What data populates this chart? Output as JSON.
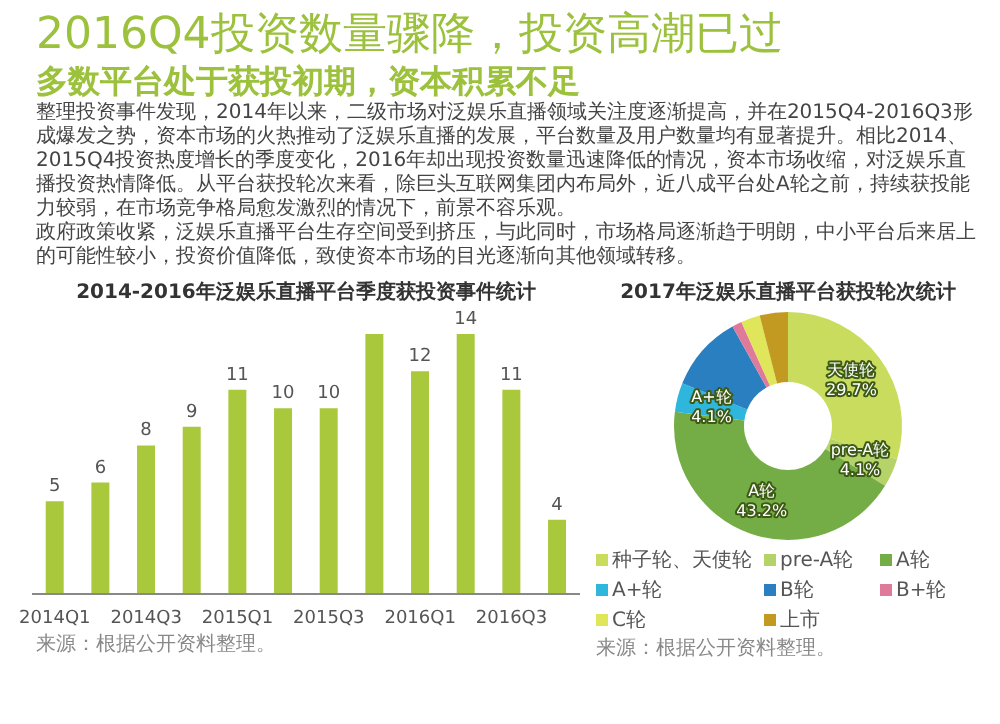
{
  "chart_data": [
    {
      "type": "other",
      "title": "2016Q4投资数量骤降，投资高潮已过",
      "subtitle": "多数平台处于获投初期，资本积累不足",
      "annotations": [
        "整理投资事件发现，2014年以来，二级市场对泛娱乐直播领域关注度逐渐提高，并在2015Q4-2016Q3形成爆发之势，资本市场的火热推动了泛娱乐直播的发展，平台数量及用户数量均有显著提升。相比2014、2015Q4投资热度增长的季度变化，2016年却出现投资数量迅速降低的情况，资本市场收缩，对泛娱乐直播投资热情降低。从平台获投轮次来看，除巨头互联网集团内布局外，近八成平台处A轮之前，持续获投能力较弱，在市场竞争格局愈发激烈的情况下，前景不容乐观。",
        "政府政策收紧，泛娱乐直播平台生存空间受到挤压，与此同时，市场格局逐渐趋于明朗，中小平台后来居上的可能性较小，投资价值降低，致使资本市场的目光逐渐向其他领域转移。"
      ]
    },
    {
      "type": "bar",
      "title": "2014-2016年泛娱乐直播平台季度获投资事件统计",
      "categories": [
        "2014Q1",
        null,
        "2014Q3",
        null,
        "2015Q1",
        null,
        "2015Q3",
        null,
        "2016Q1",
        null,
        "2016Q3",
        null
      ],
      "values": [
        5,
        6,
        8,
        9,
        11,
        10,
        10,
        14,
        12,
        14,
        11,
        4
      ],
      "value_labels": [
        "5",
        "6",
        "8",
        "9",
        "11",
        "10",
        "10",
        null,
        "12",
        "14",
        "11",
        "4"
      ],
      "color": "#a9c83c",
      "annotations": [
        "来源：根据公开资料整理。"
      ]
    },
    {
      "type": "donut",
      "title": "2017年泛娱乐直播平台获投轮次统计",
      "categories": [
        "种子轮、天使轮",
        "pre-A轮",
        "A轮",
        "A+轮",
        "B轮",
        "B+轮",
        "C轮",
        "上市"
      ],
      "values": [
        29.7,
        4.1,
        43.2,
        4.1,
        10.8,
        1.4,
        2.7,
        4.0
      ],
      "value_labels": [
        "29.7%",
        "4.1%",
        "43.2%",
        "4.1%",
        null,
        null,
        null,
        null
      ],
      "colors": [
        "#c9dc5e",
        "#b6d36a",
        "#74ad45",
        "#2fb6dc",
        "#2a7fc0",
        "#e07a9a",
        "#dfe65a",
        "#c29a22"
      ],
      "legend": "bottom",
      "annotations": [
        {
          "text": "天使轮",
          "x": "种子轮、天使轮"
        },
        {
          "text": "pre-A轮",
          "x": "pre-A轮"
        },
        {
          "text": "A轮",
          "x": "A轮"
        },
        {
          "text": "A+轮",
          "x": "A+轮"
        },
        "来源：根据公开资料整理。"
      ]
    }
  ]
}
